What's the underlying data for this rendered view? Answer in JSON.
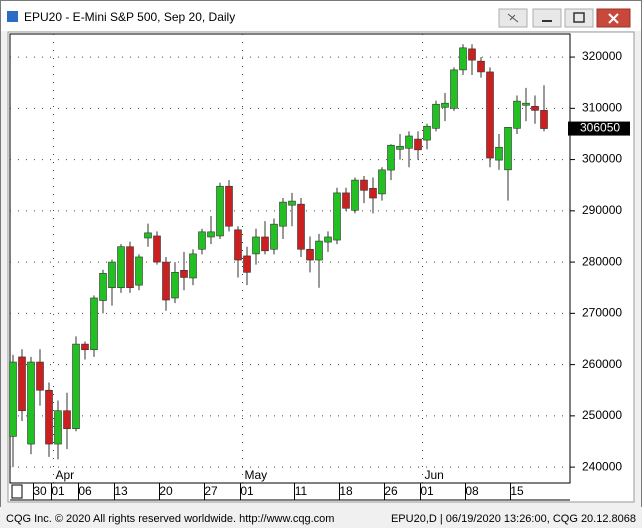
{
  "window": {
    "title": "EPU20 - E-Mini S&P 500, Sep 20, Daily"
  },
  "status_bar": {
    "left": "CQG Inc. © 2020 All rights reserved worldwide. http://www.cqg.com",
    "right": "EPU20,D | 06/19/2020 13:26:00, CQG 20.12.8068"
  },
  "chart_data": {
    "type": "candlestick",
    "categories": [
      null,
      null,
      null,
      "30",
      null,
      "01",
      null,
      null,
      "06",
      null,
      null,
      null,
      "13",
      null,
      null,
      null,
      null,
      "20",
      null,
      null,
      null,
      null,
      "27",
      null,
      null,
      null,
      "01",
      null,
      null,
      null,
      null,
      null,
      "11",
      null,
      null,
      null,
      null,
      "18",
      null,
      null,
      null,
      null,
      "26",
      null,
      null,
      null,
      "01",
      null,
      null,
      null,
      null,
      "08",
      null,
      null,
      null,
      null,
      "15",
      null,
      null,
      null
    ],
    "month_labels": [
      null,
      null,
      null,
      null,
      null,
      "Apr",
      null,
      null,
      null,
      null,
      null,
      null,
      null,
      null,
      null,
      null,
      null,
      null,
      null,
      null,
      null,
      null,
      null,
      null,
      null,
      null,
      "May",
      null,
      null,
      null,
      null,
      null,
      null,
      null,
      null,
      null,
      null,
      null,
      null,
      null,
      null,
      null,
      null,
      null,
      null,
      null,
      "Jun",
      null,
      null,
      null,
      null,
      null,
      null,
      null,
      null,
      null,
      null,
      null,
      null,
      null
    ],
    "open": [
      246000,
      261500,
      244500,
      260500,
      255000,
      244500,
      251000,
      247500,
      264000,
      262900,
      272500,
      275000,
      275000,
      283000,
      275500,
      284700,
      285100,
      280000,
      273000,
      278400,
      276900,
      282500,
      284900,
      285100,
      294800,
      286300,
      281200,
      281600,
      284900,
      282500,
      287000,
      291100,
      291300,
      282500,
      280400,
      283900,
      284300,
      293500,
      290100,
      296000,
      294400,
      293300,
      297950,
      302000,
      302200,
      304000,
      303800,
      306100,
      310200,
      310000,
      317500,
      321600,
      319200,
      317100,
      299900,
      298000,
      306100,
      310600,
      310400,
      309600
    ],
    "high": [
      261900,
      263000,
      261500,
      263000,
      256500,
      253000,
      254500,
      265500,
      264500,
      273500,
      278500,
      280500,
      283500,
      284000,
      281500,
      287500,
      286000,
      281000,
      280000,
      282000,
      282500,
      286500,
      289000,
      295500,
      296000,
      287000,
      283000,
      286500,
      288000,
      288500,
      292500,
      293500,
      292500,
      285000,
      285500,
      286000,
      294500,
      294500,
      296500,
      296800,
      296500,
      298500,
      303000,
      305000,
      305500,
      305500,
      307000,
      311500,
      313000,
      318000,
      322500,
      322500,
      320000,
      318000,
      305000,
      306000,
      312500,
      314000,
      312500,
      314500
    ],
    "low": [
      240000,
      249000,
      242500,
      252000,
      242000,
      241500,
      243500,
      247000,
      261000,
      261500,
      270000,
      271500,
      274000,
      274000,
      274500,
      283000,
      279500,
      270500,
      272000,
      274500,
      275500,
      281500,
      283500,
      284500,
      286000,
      277000,
      275500,
      279500,
      281500,
      281500,
      284500,
      287000,
      281000,
      278000,
      275000,
      282000,
      283500,
      290000,
      289500,
      291500,
      289500,
      292000,
      296000,
      300000,
      298500,
      300000,
      302000,
      305500,
      307500,
      309500,
      316500,
      316500,
      316000,
      298500,
      298000,
      292000,
      305000,
      307500,
      307000,
      305500
    ],
    "close": [
      260500,
      251000,
      260500,
      255000,
      244500,
      251000,
      247500,
      264000,
      262900,
      273000,
      277800,
      280000,
      283000,
      275000,
      281000,
      285700,
      280000,
      272600,
      278000,
      277000,
      281600,
      285900,
      285900,
      294800,
      287000,
      280400,
      278000,
      284900,
      282200,
      287400,
      291700,
      291900,
      282500,
      280400,
      284100,
      284900,
      293500,
      290500,
      296000,
      294000,
      292500,
      298000,
      302800,
      302600,
      304600,
      301900,
      306500,
      310800,
      311000,
      317500,
      321800,
      319400,
      317100,
      300300,
      302400,
      306300,
      311400,
      311000,
      309600,
      306050
    ],
    "up_color": "#22c022",
    "down_color": "#cc1f1f",
    "ylim": [
      236900,
      324500
    ],
    "yticks": [
      240000,
      250000,
      260000,
      270000,
      280000,
      290000,
      300000,
      310000,
      320000
    ],
    "last_price": 306050,
    "grid": true
  }
}
